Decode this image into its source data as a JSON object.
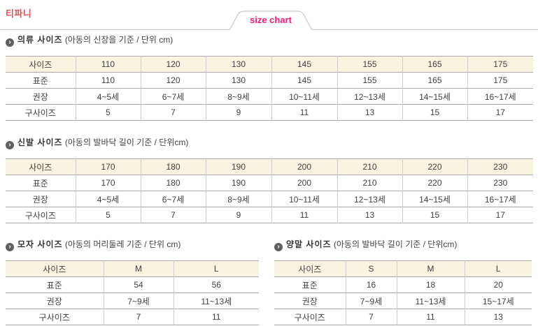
{
  "brand": {
    "name": "티파니"
  },
  "tab": {
    "label": "size chart"
  },
  "icons": {
    "section_bullet": "›"
  },
  "colors": {
    "brand_red": "#e25353",
    "accent_pink": "#f01c7c",
    "table_header_bg": "#f8f3de",
    "border_horizontal": "#a8a8a8",
    "border_vertical": "#cccccc",
    "text": "#3f3f3f"
  },
  "sections": [
    {
      "title": "의류 사이즈",
      "note": "(아동의 신장을 기준 / 단위 cm)",
      "table": {
        "rows": [
          [
            "사이즈",
            "110",
            "120",
            "130",
            "145",
            "155",
            "165",
            "175"
          ],
          [
            "표준",
            "110",
            "120",
            "130",
            "145",
            "155",
            "165",
            "175"
          ],
          [
            "권장",
            "4~5세",
            "6~7세",
            "8~9세",
            "10~11세",
            "12~13세",
            "14~15세",
            "16~17세"
          ],
          [
            "구사이즈",
            "5",
            "7",
            "9",
            "11",
            "13",
            "15",
            "17"
          ]
        ]
      }
    },
    {
      "title": "신발 사이즈",
      "note": "(아동의 발바닥 길이 기준 / 단위cm)",
      "table": {
        "rows": [
          [
            "사이즈",
            "170",
            "180",
            "190",
            "200",
            "210",
            "220",
            "230"
          ],
          [
            "표준",
            "170",
            "180",
            "190",
            "200",
            "210",
            "220",
            "230"
          ],
          [
            "권장",
            "4~5세",
            "6~7세",
            "8~9세",
            "10~11세",
            "12~13세",
            "14~15세",
            "16~17세"
          ],
          [
            "구사이즈",
            "5",
            "7",
            "9",
            "11",
            "13",
            "15",
            "17"
          ]
        ]
      }
    },
    {
      "title": "모자 사이즈",
      "note": "(아동의 머리둘레 기준 / 단위 cm)",
      "table": {
        "rows": [
          [
            "사이즈",
            "M",
            "L"
          ],
          [
            "표준",
            "54",
            "56"
          ],
          [
            "권장",
            "7~9세",
            "11~13세"
          ],
          [
            "구사이즈",
            "7",
            "11"
          ]
        ]
      }
    },
    {
      "title": "양말 사이즈",
      "note": "(아동의 발바닥 길이 기준 / 단위cm)",
      "table": {
        "rows": [
          [
            "사이즈",
            "S",
            "M",
            "L"
          ],
          [
            "표준",
            "16",
            "18",
            "20"
          ],
          [
            "권장",
            "7~9세",
            "11~13세",
            "15~17세"
          ],
          [
            "구사이즈",
            "7",
            "11",
            "13"
          ]
        ]
      }
    }
  ]
}
